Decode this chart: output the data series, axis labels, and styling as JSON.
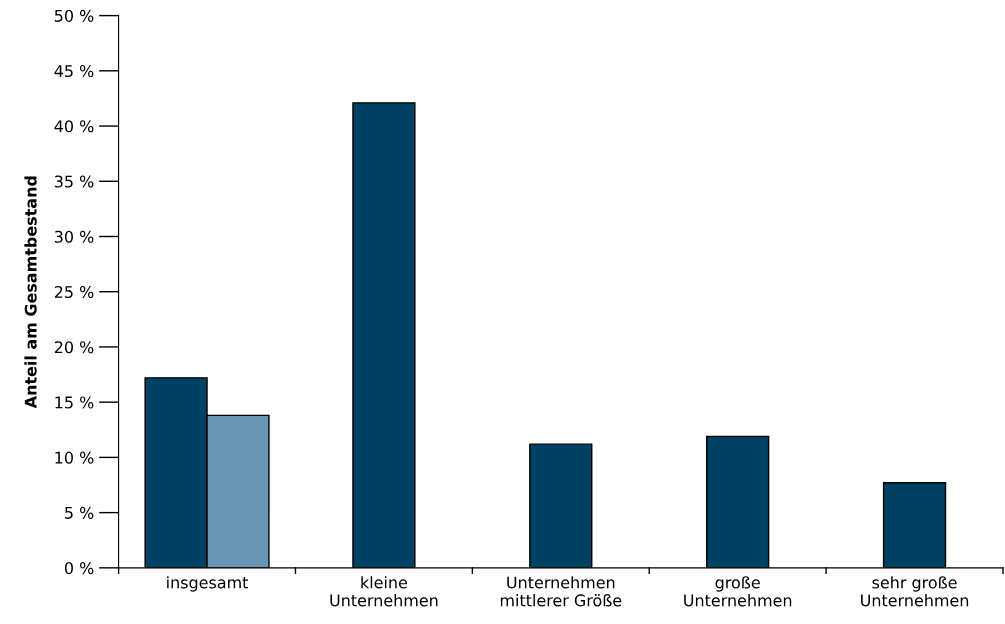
{
  "chart_data": {
    "type": "bar",
    "ylabel": "Anteil am Gesamtbestand",
    "categories": [
      "insgesamt",
      "kleine\nUnternehmen",
      "Unternehmen\nmittlerer Größe",
      "große\nUnternehmen",
      "sehr große\nUnternehmen"
    ],
    "series": [
      {
        "color": "#004263",
        "values": [
          17.2,
          42.1,
          11.2,
          11.9,
          7.7
        ]
      },
      {
        "color": "#6895b4",
        "values": [
          13.8,
          null,
          null,
          null,
          null
        ]
      }
    ],
    "ylim": [
      0,
      50
    ],
    "yticks": [
      {
        "value": 0,
        "label": "0 %"
      },
      {
        "value": 5,
        "label": "5 %"
      },
      {
        "value": 10,
        "label": "10 %"
      },
      {
        "value": 15,
        "label": "15 %"
      },
      {
        "value": 20,
        "label": "20 %"
      },
      {
        "value": 25,
        "label": "25 %"
      },
      {
        "value": 30,
        "label": "30 %"
      },
      {
        "value": 35,
        "label": "35 %"
      },
      {
        "value": 40,
        "label": "40 %"
      },
      {
        "value": 45,
        "label": "45 %"
      },
      {
        "value": 50,
        "label": "50 %"
      }
    ],
    "grid": false
  }
}
